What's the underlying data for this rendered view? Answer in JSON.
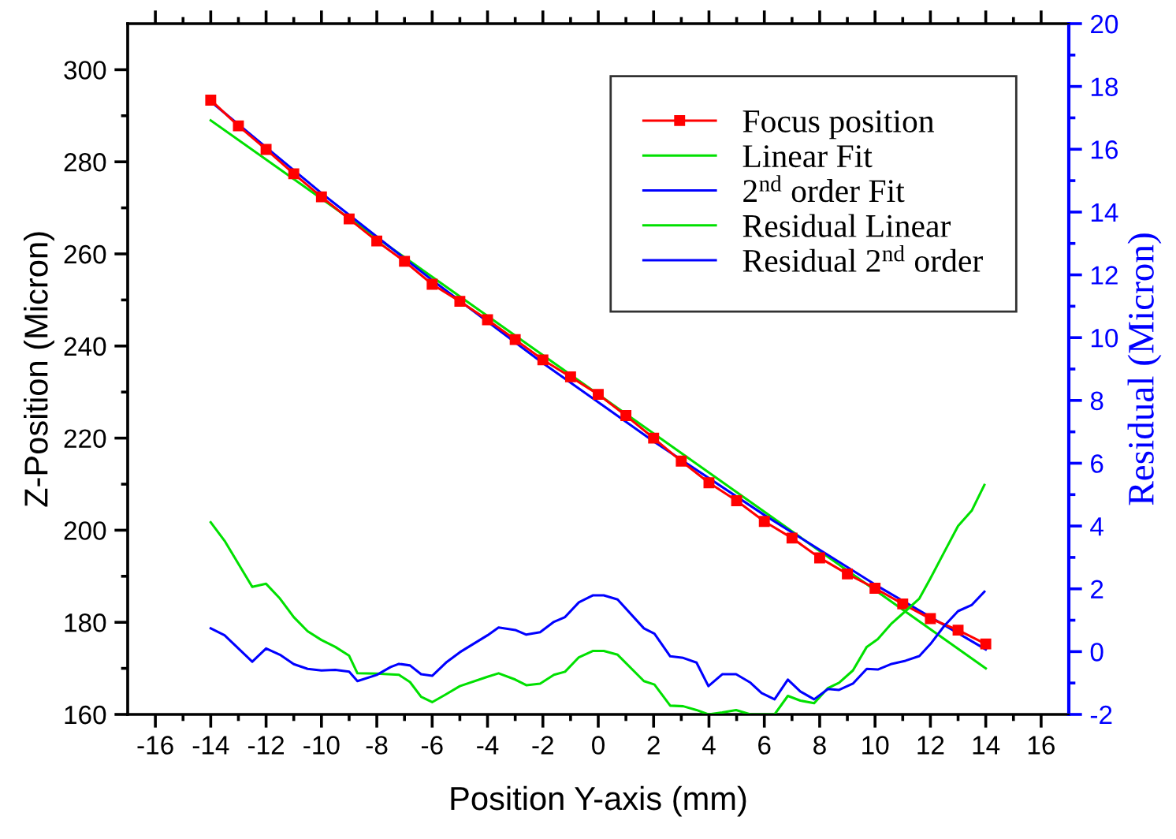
{
  "chart_data": {
    "type": "line",
    "xlabel": "Position Y-axis (mm)",
    "ylabel": "Z-Position (Micron)",
    "y2label": "Residual (Micron)",
    "xlim": [
      -17,
      17
    ],
    "xticks": [
      -16,
      -14,
      -12,
      -10,
      -8,
      -6,
      -4,
      -2,
      0,
      2,
      4,
      6,
      8,
      10,
      12,
      14,
      16
    ],
    "ylim": [
      160,
      310
    ],
    "yticks": [
      160,
      180,
      200,
      220,
      240,
      260,
      280,
      300
    ],
    "y2lim": [
      -2,
      20
    ],
    "y2ticks": [
      -2,
      0,
      2,
      4,
      6,
      8,
      10,
      12,
      14,
      16,
      18,
      20
    ],
    "grid": false,
    "legend": "top right",
    "series": [
      {
        "name": "Focus position",
        "color": "#ff0000",
        "marker": "square",
        "x": [
          -14,
          -13,
          -12,
          -11,
          -10,
          -9,
          -8,
          -7,
          -6,
          -5,
          -4,
          -3,
          -2,
          -1,
          0,
          1,
          2,
          3,
          4,
          5,
          6,
          7,
          8,
          9,
          10,
          11,
          12,
          13,
          14
        ],
        "values": [
          293.4,
          287.8,
          282.7,
          277.4,
          272.4,
          267.6,
          262.8,
          258.4,
          253.4,
          249.7,
          245.7,
          241.4,
          237.0,
          233.3,
          229.5,
          224.9,
          220.0,
          215.0,
          210.3,
          206.4,
          201.9,
          198.3,
          194.0,
          190.5,
          187.4,
          184.0,
          180.8,
          178.3,
          175.3
        ]
      },
      {
        "name": "Linear Fit",
        "color": "#00e000",
        "x": [
          -14,
          14
        ],
        "values": [
          289,
          170
        ]
      },
      {
        "name": "2$^{nd}$ order Fit",
        "color": "#0000ff",
        "x": [
          -14,
          -10,
          -6,
          -2,
          2,
          6,
          10,
          14
        ],
        "values": [
          293.1,
          273.2,
          254.3,
          236.3,
          219.3,
          203.3,
          188.2,
          174.1
        ]
      },
      {
        "name": "Residual Linear",
        "color": "#00e000",
        "axis": "y2",
        "x": [
          -14,
          -13.5,
          -12.5,
          -12,
          -11.5,
          -11,
          -10.5,
          -10,
          -9.5,
          -9,
          -8.7,
          -8,
          -7.2,
          -6.8,
          -6.4,
          -6,
          -5.5,
          -5,
          -4,
          -3.6,
          -3,
          -2.6,
          -2.1,
          -1.6,
          -1.2,
          -0.7,
          -0.2,
          0.2,
          0.7,
          1.65,
          2.03,
          2.6,
          3.07,
          3.55,
          3.98,
          4.48,
          4.98,
          5.5,
          6.37,
          6.85,
          7.3,
          7.8,
          8.3,
          8.7,
          9.2,
          9.7,
          10.1,
          10.6,
          11.1,
          11.6,
          12.0,
          12.5,
          13.0,
          13.5,
          13.95
        ],
        "values": [
          4.12,
          3.53,
          2.06,
          2.16,
          1.69,
          1.1,
          0.65,
          0.37,
          0.15,
          -0.13,
          -0.69,
          -0.7,
          -0.74,
          -0.97,
          -1.44,
          -1.61,
          -1.36,
          -1.1,
          -0.8,
          -0.69,
          -0.89,
          -1.07,
          -1.02,
          -0.74,
          -0.64,
          -0.18,
          0.02,
          0.02,
          -0.1,
          -0.94,
          -1.05,
          -1.72,
          -1.74,
          -1.86,
          -2.0,
          -1.94,
          -1.86,
          -2.0,
          -2.0,
          -1.41,
          -1.56,
          -1.64,
          -1.16,
          -0.99,
          -0.6,
          0.15,
          0.4,
          0.9,
          1.29,
          1.69,
          2.33,
          3.17,
          4.0,
          4.5,
          5.31
        ]
      },
      {
        "name": "Residual 2$^{nd}$ order",
        "color": "#0000ff",
        "axis": "y2",
        "x": [
          -14,
          -13.5,
          -12.5,
          -12,
          -11.5,
          -11,
          -10.5,
          -10,
          -9.5,
          -9,
          -8.7,
          -8,
          -7.5,
          -7.2,
          -6.8,
          -6.4,
          -6,
          -5.5,
          -5,
          -4,
          -3.6,
          -3,
          -2.6,
          -2.1,
          -1.6,
          -1.2,
          -0.7,
          -0.2,
          0.2,
          0.7,
          1.65,
          2.03,
          2.6,
          3.07,
          3.55,
          3.98,
          4.48,
          4.98,
          5.5,
          5.9,
          6.37,
          6.85,
          7.3,
          7.8,
          8.3,
          8.7,
          9.2,
          9.7,
          10.1,
          10.6,
          11.1,
          11.6,
          12.0,
          12.5,
          13.0,
          13.5,
          13.95
        ],
        "values": [
          0.74,
          0.52,
          -0.32,
          0.1,
          -0.1,
          -0.4,
          -0.55,
          -0.6,
          -0.58,
          -0.64,
          -0.94,
          -0.74,
          -0.49,
          -0.39,
          -0.44,
          -0.72,
          -0.77,
          -0.35,
          -0.02,
          0.52,
          0.77,
          0.69,
          0.54,
          0.62,
          0.95,
          1.1,
          1.57,
          1.79,
          1.79,
          1.66,
          0.74,
          0.57,
          -0.15,
          -0.2,
          -0.35,
          -1.1,
          -0.72,
          -0.72,
          -0.99,
          -1.32,
          -1.52,
          -0.89,
          -1.27,
          -1.52,
          -1.19,
          -1.22,
          -1.02,
          -0.55,
          -0.57,
          -0.39,
          -0.29,
          -0.14,
          0.24,
          0.82,
          1.29,
          1.49,
          1.91
        ]
      }
    ]
  }
}
